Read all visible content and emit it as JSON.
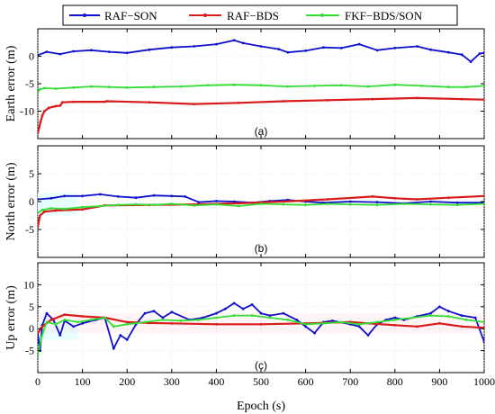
{
  "legend": {
    "items": [
      {
        "label": "RAF−SON",
        "color": "#1010cc"
      },
      {
        "label": "RAF−BDS",
        "color": "#d81b1b"
      },
      {
        "label": "FKF−BDS/SON",
        "color": "#33dd33"
      }
    ]
  },
  "colors": {
    "band": "#e8ffff",
    "band_pink": "#ffd6e0",
    "dark": "#7a2a10"
  },
  "chart_data": [
    {
      "type": "line",
      "tag": "(a)",
      "ylabel": "Earth error (m)",
      "xlim": [
        0,
        1000
      ],
      "ylim": [
        -15,
        5
      ],
      "yticks": [
        -10,
        -5,
        0
      ],
      "grid": true,
      "series": [
        {
          "name": "RAF−SON",
          "color": "#1010cc",
          "points": [
            [
              0,
              0.2
            ],
            [
              20,
              0.8
            ],
            [
              50,
              0.4
            ],
            [
              80,
              0.9
            ],
            [
              120,
              1.1
            ],
            [
              160,
              0.8
            ],
            [
              200,
              0.6
            ],
            [
              250,
              1.2
            ],
            [
              300,
              1.6
            ],
            [
              350,
              1.8
            ],
            [
              400,
              2.2
            ],
            [
              440,
              2.9
            ],
            [
              460,
              2.4
            ],
            [
              500,
              1.8
            ],
            [
              540,
              1.3
            ],
            [
              560,
              0.7
            ],
            [
              600,
              1.0
            ],
            [
              640,
              1.6
            ],
            [
              680,
              1.5
            ],
            [
              720,
              2.2
            ],
            [
              760,
              1.1
            ],
            [
              800,
              1.5
            ],
            [
              850,
              1.8
            ],
            [
              880,
              1.2
            ],
            [
              920,
              0.7
            ],
            [
              950,
              0.3
            ],
            [
              970,
              -1.0
            ],
            [
              990,
              0.5
            ],
            [
              1000,
              0.6
            ]
          ]
        },
        {
          "name": "RAF−BDS",
          "color": "#d81b1b",
          "points": [
            [
              0,
              -14
            ],
            [
              3,
              -13
            ],
            [
              6,
              -12
            ],
            [
              10,
              -10.8
            ],
            [
              15,
              -10
            ],
            [
              25,
              -9.4
            ],
            [
              40,
              -9.1
            ],
            [
              50,
              -9.0
            ],
            [
              55,
              -8.4
            ],
            [
              80,
              -8.3
            ],
            [
              150,
              -8.3
            ],
            [
              155,
              -8.2
            ],
            [
              250,
              -8.4
            ],
            [
              350,
              -8.7
            ],
            [
              450,
              -8.5
            ],
            [
              550,
              -8.2
            ],
            [
              650,
              -8.0
            ],
            [
              750,
              -7.8
            ],
            [
              850,
              -7.6
            ],
            [
              950,
              -7.8
            ],
            [
              1000,
              -7.9
            ]
          ]
        },
        {
          "name": "FKF−BDS/SON",
          "color": "#33dd33",
          "points": [
            [
              0,
              -6.5
            ],
            [
              5,
              -6.0
            ],
            [
              15,
              -5.8
            ],
            [
              40,
              -5.9
            ],
            [
              80,
              -5.7
            ],
            [
              120,
              -5.5
            ],
            [
              160,
              -5.6
            ],
            [
              200,
              -5.7
            ],
            [
              260,
              -5.6
            ],
            [
              320,
              -5.5
            ],
            [
              380,
              -5.3
            ],
            [
              440,
              -5.2
            ],
            [
              500,
              -5.3
            ],
            [
              560,
              -5.5
            ],
            [
              620,
              -5.4
            ],
            [
              680,
              -5.3
            ],
            [
              740,
              -5.5
            ],
            [
              800,
              -5.2
            ],
            [
              860,
              -5.4
            ],
            [
              920,
              -5.6
            ],
            [
              960,
              -5.6
            ],
            [
              1000,
              -5.4
            ]
          ]
        }
      ]
    },
    {
      "type": "line",
      "tag": "(b)",
      "ylabel": "North error (m)",
      "xlim": [
        0,
        1000
      ],
      "ylim": [
        -10,
        10
      ],
      "yticks": [
        -5,
        0,
        5
      ],
      "grid": true,
      "series": [
        {
          "name": "RAF−SON",
          "color": "#1010cc",
          "points": [
            [
              0,
              0.4
            ],
            [
              30,
              0.6
            ],
            [
              60,
              1.0
            ],
            [
              100,
              1.0
            ],
            [
              140,
              1.3
            ],
            [
              180,
              0.9
            ],
            [
              220,
              0.7
            ],
            [
              260,
              1.1
            ],
            [
              300,
              1.0
            ],
            [
              330,
              0.9
            ],
            [
              360,
              -0.1
            ],
            [
              400,
              0.1
            ],
            [
              440,
              0.0
            ],
            [
              480,
              -0.2
            ],
            [
              520,
              0.1
            ],
            [
              560,
              0.3
            ],
            [
              600,
              0.0
            ],
            [
              640,
              -0.2
            ],
            [
              700,
              0.0
            ],
            [
              760,
              -0.1
            ],
            [
              820,
              -0.3
            ],
            [
              880,
              0.0
            ],
            [
              940,
              -0.2
            ],
            [
              1000,
              -0.2
            ]
          ]
        },
        {
          "name": "RAF−BDS",
          "color": "#d81b1b",
          "points": [
            [
              0,
              -4.5
            ],
            [
              5,
              -2.5
            ],
            [
              15,
              -1.8
            ],
            [
              40,
              -1.6
            ],
            [
              100,
              -1.4
            ],
            [
              150,
              -0.7
            ],
            [
              250,
              -0.6
            ],
            [
              350,
              -0.5
            ],
            [
              450,
              -0.3
            ],
            [
              550,
              0.0
            ],
            [
              650,
              0.4
            ],
            [
              750,
              0.9
            ],
            [
              800,
              0.6
            ],
            [
              850,
              0.4
            ],
            [
              920,
              0.7
            ],
            [
              1000,
              1.0
            ]
          ]
        },
        {
          "name": "FKF−BDS/SON",
          "color": "#33dd33",
          "points": [
            [
              0,
              -2.0
            ],
            [
              10,
              -1.5
            ],
            [
              30,
              -1.2
            ],
            [
              60,
              -1.3
            ],
            [
              100,
              -1.0
            ],
            [
              140,
              -0.8
            ],
            [
              180,
              -0.6
            ],
            [
              220,
              -0.5
            ],
            [
              260,
              -0.6
            ],
            [
              300,
              -0.4
            ],
            [
              350,
              -0.7
            ],
            [
              400,
              -0.5
            ],
            [
              450,
              -0.8
            ],
            [
              500,
              -0.4
            ],
            [
              550,
              -0.5
            ],
            [
              600,
              -0.6
            ],
            [
              650,
              -0.4
            ],
            [
              700,
              -0.5
            ],
            [
              760,
              -0.6
            ],
            [
              820,
              -0.4
            ],
            [
              880,
              -0.5
            ],
            [
              940,
              -0.6
            ],
            [
              1000,
              -0.4
            ]
          ]
        }
      ]
    },
    {
      "type": "line",
      "tag": "(c)",
      "ylabel": "Up error (m)",
      "xlabel": "Epoch (s)",
      "xlim": [
        0,
        1000
      ],
      "ylim": [
        -10,
        15
      ],
      "yticks": [
        -5,
        0,
        5,
        10
      ],
      "xticks": [
        0,
        100,
        200,
        300,
        400,
        500,
        600,
        700,
        800,
        900,
        1000
      ],
      "grid": true,
      "series": [
        {
          "name": "RAF−SON",
          "color": "#1010cc",
          "points": [
            [
              0,
              -1.0
            ],
            [
              5,
              -5.0
            ],
            [
              10,
              0.8
            ],
            [
              20,
              3.5
            ],
            [
              35,
              2.0
            ],
            [
              50,
              -1.5
            ],
            [
              60,
              1.8
            ],
            [
              80,
              0.5
            ],
            [
              100,
              1.2
            ],
            [
              130,
              2.0
            ],
            [
              150,
              2.5
            ],
            [
              170,
              -4.5
            ],
            [
              185,
              -1.5
            ],
            [
              200,
              -2.5
            ],
            [
              220,
              1.0
            ],
            [
              240,
              3.5
            ],
            [
              260,
              4.0
            ],
            [
              280,
              2.5
            ],
            [
              300,
              3.8
            ],
            [
              340,
              2.0
            ],
            [
              370,
              2.5
            ],
            [
              400,
              3.5
            ],
            [
              420,
              4.5
            ],
            [
              440,
              5.8
            ],
            [
              460,
              4.5
            ],
            [
              480,
              5.5
            ],
            [
              500,
              3.5
            ],
            [
              520,
              3.0
            ],
            [
              550,
              3.5
            ],
            [
              580,
              2.0
            ],
            [
              600,
              0.5
            ],
            [
              620,
              -1.0
            ],
            [
              640,
              1.5
            ],
            [
              660,
              1.8
            ],
            [
              700,
              1.0
            ],
            [
              720,
              0.5
            ],
            [
              740,
              -1.5
            ],
            [
              760,
              1.0
            ],
            [
              780,
              2.0
            ],
            [
              800,
              2.5
            ],
            [
              820,
              2.0
            ],
            [
              850,
              2.8
            ],
            [
              880,
              3.5
            ],
            [
              900,
              5.0
            ],
            [
              920,
              4.0
            ],
            [
              950,
              3.0
            ],
            [
              980,
              2.5
            ],
            [
              1000,
              -3.0
            ]
          ]
        },
        {
          "name": "RAF−BDS",
          "color": "#d81b1b",
          "points": [
            [
              0,
              -1.0
            ],
            [
              10,
              0.5
            ],
            [
              30,
              2.0
            ],
            [
              60,
              3.2
            ],
            [
              100,
              2.8
            ],
            [
              150,
              2.5
            ],
            [
              200,
              1.5
            ],
            [
              250,
              1.3
            ],
            [
              300,
              1.2
            ],
            [
              400,
              1.0
            ],
            [
              500,
              1.0
            ],
            [
              600,
              1.2
            ],
            [
              700,
              1.5
            ],
            [
              800,
              0.8
            ],
            [
              850,
              0.5
            ],
            [
              900,
              1.2
            ],
            [
              950,
              0.5
            ],
            [
              1000,
              0.2
            ]
          ]
        },
        {
          "name": "FKF−BDS/SON",
          "color": "#33dd33",
          "points": [
            [
              0,
              -6.0
            ],
            [
              8,
              -2.0
            ],
            [
              20,
              1.5
            ],
            [
              40,
              1.0
            ],
            [
              60,
              2.0
            ],
            [
              90,
              1.5
            ],
            [
              120,
              2.0
            ],
            [
              150,
              2.5
            ],
            [
              170,
              0.5
            ],
            [
              200,
              1.0
            ],
            [
              240,
              1.5
            ],
            [
              280,
              2.0
            ],
            [
              320,
              1.8
            ],
            [
              360,
              2.0
            ],
            [
              400,
              2.5
            ],
            [
              440,
              3.0
            ],
            [
              480,
              3.0
            ],
            [
              520,
              2.5
            ],
            [
              560,
              2.0
            ],
            [
              600,
              1.0
            ],
            [
              640,
              1.2
            ],
            [
              680,
              1.5
            ],
            [
              720,
              1.0
            ],
            [
              760,
              1.5
            ],
            [
              800,
              2.0
            ],
            [
              840,
              2.5
            ],
            [
              880,
              3.0
            ],
            [
              920,
              2.8
            ],
            [
              960,
              2.0
            ],
            [
              1000,
              1.5
            ]
          ]
        }
      ]
    }
  ]
}
